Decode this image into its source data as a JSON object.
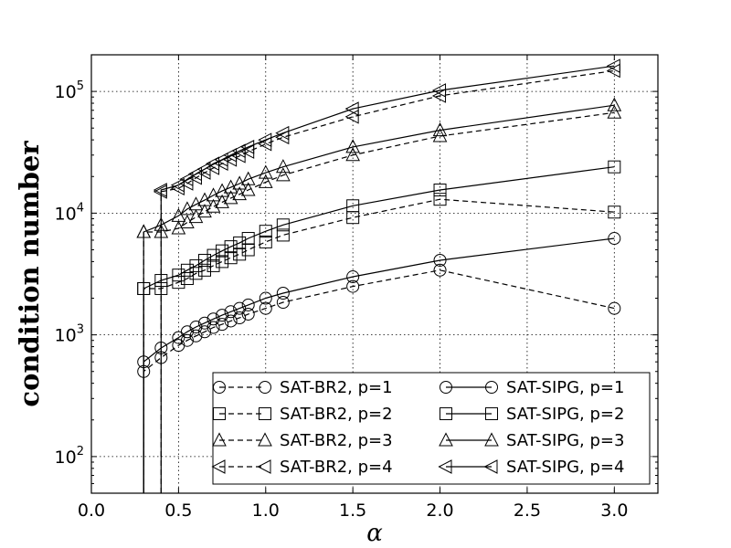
{
  "chart_data": {
    "type": "line",
    "title": "",
    "xlabel": "α",
    "ylabel": "condition number",
    "xlim": [
      0,
      3.25
    ],
    "ylim": [
      50,
      200000
    ],
    "yscale": "log",
    "grid": true,
    "legend_position": "bottom-right",
    "x_tick_labels": [
      "0.0",
      "0.5",
      "1.0",
      "1.5",
      "2.0",
      "2.5",
      "3.0"
    ],
    "y_tick_labels": [
      {
        "base": "10",
        "exp": "2"
      },
      {
        "base": "10",
        "exp": "3"
      },
      {
        "base": "10",
        "exp": "4"
      },
      {
        "base": "10",
        "exp": "5"
      }
    ],
    "series": [
      {
        "name": "SAT-BR2, p=1",
        "marker": "circle",
        "dashed": true,
        "x": [
          0.3,
          0.4,
          0.5,
          0.55,
          0.6,
          0.65,
          0.7,
          0.75,
          0.8,
          0.85,
          0.9,
          1.0,
          1.1,
          1.5,
          2.0,
          3.0
        ],
        "y": [
          500,
          650,
          820,
          900,
          980,
          1060,
          1150,
          1220,
          1300,
          1380,
          1480,
          1650,
          1850,
          2500,
          3400,
          1650
        ]
      },
      {
        "name": "SAT-BR2, p=2",
        "marker": "square",
        "dashed": true,
        "x": [
          0.3,
          0.4,
          0.5,
          0.55,
          0.6,
          0.65,
          0.7,
          0.75,
          0.8,
          0.85,
          0.9,
          1.0,
          1.1,
          1.5,
          2.0,
          3.0
        ],
        "y": [
          2400,
          2400,
          2700,
          2900,
          3200,
          3400,
          3700,
          4000,
          4300,
          4600,
          5000,
          5800,
          6600,
          9200,
          13000,
          10200
        ]
      },
      {
        "name": "SAT-BR2, p=3",
        "marker": "triangle-up",
        "dashed": true,
        "x": [
          0.3,
          0.4,
          0.5,
          0.55,
          0.6,
          0.65,
          0.7,
          0.75,
          0.8,
          0.85,
          0.9,
          1.0,
          1.1,
          1.5,
          2.0,
          3.0
        ],
        "y": [
          7000,
          7000,
          7500,
          8400,
          9300,
          10300,
          11300,
          12300,
          13300,
          14300,
          15500,
          18000,
          20500,
          30000,
          43000,
          67000
        ]
      },
      {
        "name": "SAT-BR2, p=4",
        "marker": "triangle-left",
        "dashed": true,
        "x": [
          0.4,
          0.5,
          0.55,
          0.6,
          0.65,
          0.7,
          0.75,
          0.8,
          0.85,
          0.9,
          1.0,
          1.1,
          1.5,
          2.0,
          3.0
        ],
        "y": [
          15000,
          16000,
          17500,
          19500,
          21500,
          23500,
          25500,
          27500,
          29500,
          32000,
          37000,
          42000,
          62000,
          92000,
          148000
        ]
      },
      {
        "name": "SAT-SIPG, p=1",
        "marker": "circle",
        "dashed": false,
        "x": [
          0.3,
          0.4,
          0.5,
          0.55,
          0.6,
          0.65,
          0.7,
          0.75,
          0.8,
          0.85,
          0.9,
          1.0,
          1.1,
          1.5,
          2.0,
          3.0
        ],
        "y": [
          600,
          780,
          950,
          1060,
          1160,
          1250,
          1350,
          1450,
          1550,
          1650,
          1760,
          2000,
          2200,
          3000,
          4100,
          6200
        ]
      },
      {
        "name": "SAT-SIPG, p=2",
        "marker": "square",
        "dashed": false,
        "x": [
          0.3,
          0.4,
          0.5,
          0.55,
          0.6,
          0.65,
          0.7,
          0.75,
          0.8,
          0.85,
          0.9,
          1.0,
          1.1,
          1.5,
          2.0,
          3.0
        ],
        "y": [
          2400,
          2800,
          3100,
          3400,
          3700,
          4100,
          4500,
          4900,
          5300,
          5700,
          6200,
          7100,
          8000,
          11500,
          15500,
          24000
        ]
      },
      {
        "name": "SAT-SIPG, p=3",
        "marker": "triangle-up",
        "dashed": false,
        "x": [
          0.3,
          0.4,
          0.5,
          0.55,
          0.6,
          0.65,
          0.7,
          0.75,
          0.8,
          0.85,
          0.9,
          1.0,
          1.1,
          1.5,
          2.0,
          3.0
        ],
        "y": [
          7000,
          8000,
          9500,
          10800,
          11800,
          12800,
          14000,
          15200,
          16300,
          17500,
          19000,
          21500,
          24000,
          35000,
          48000,
          77000
        ]
      },
      {
        "name": "SAT-SIPG, p=4",
        "marker": "triangle-left",
        "dashed": false,
        "x": [
          0.4,
          0.5,
          0.55,
          0.6,
          0.65,
          0.7,
          0.75,
          0.8,
          0.85,
          0.9,
          1.0,
          1.1,
          1.5,
          2.0,
          3.0
        ],
        "y": [
          15500,
          17000,
          19000,
          21000,
          23000,
          25500,
          27500,
          30000,
          32500,
          35000,
          40000,
          45500,
          72000,
          102000,
          162000
        ]
      }
    ]
  }
}
